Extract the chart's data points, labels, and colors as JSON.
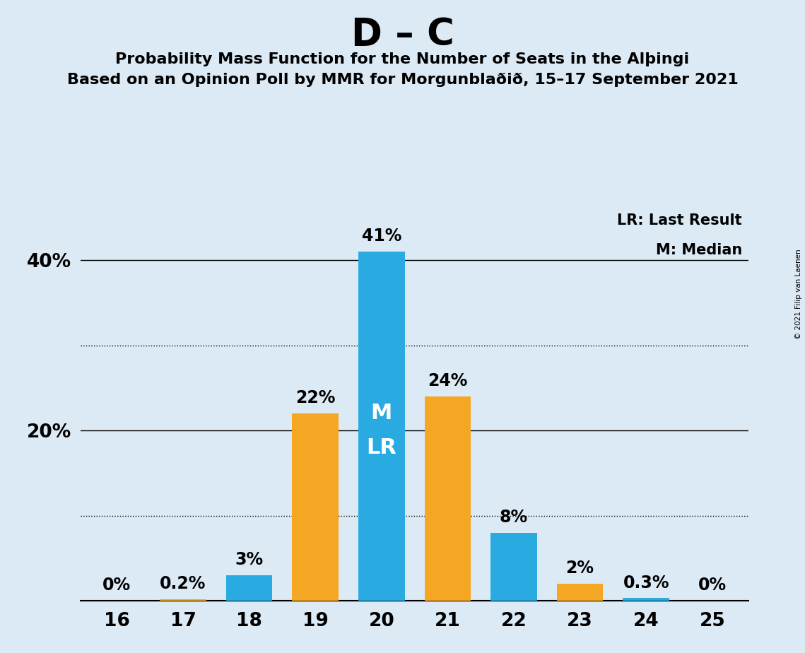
{
  "title": "D – C",
  "subtitle1": "Probability Mass Function for the Number of Seats in the Alþingi",
  "subtitle2": "Based on an Opinion Poll by MMR for Morgunblaðið, 15–17 September 2021",
  "copyright": "© 2021 Filip van Laenen",
  "seats": [
    16,
    17,
    18,
    19,
    20,
    21,
    22,
    23,
    24,
    25
  ],
  "values": [
    0.0,
    0.2,
    3.0,
    22.0,
    41.0,
    24.0,
    8.0,
    2.0,
    0.3,
    0.0
  ],
  "colors": [
    "#F5A623",
    "#F5A623",
    "#29ABE2",
    "#F5A623",
    "#29ABE2",
    "#F5A623",
    "#29ABE2",
    "#F5A623",
    "#29ABE2",
    "#F5A623"
  ],
  "labels": [
    "0%",
    "0.2%",
    "3%",
    "22%",
    "41%",
    "24%",
    "8%",
    "2%",
    "0.3%",
    "0%"
  ],
  "background_color": "#DCEAF5",
  "blue_color": "#29ABE2",
  "orange_color": "#F5A623",
  "ylim": [
    0,
    46
  ],
  "yticks": [
    10,
    20,
    30,
    40
  ],
  "yticklabels": [
    "",
    "20%",
    "",
    "40%"
  ],
  "legend_lr": "LR: Last Result",
  "legend_m": "M: Median",
  "title_fontsize": 38,
  "subtitle_fontsize": 16,
  "label_fontsize": 17,
  "bar_annotation_fontsize": 22
}
